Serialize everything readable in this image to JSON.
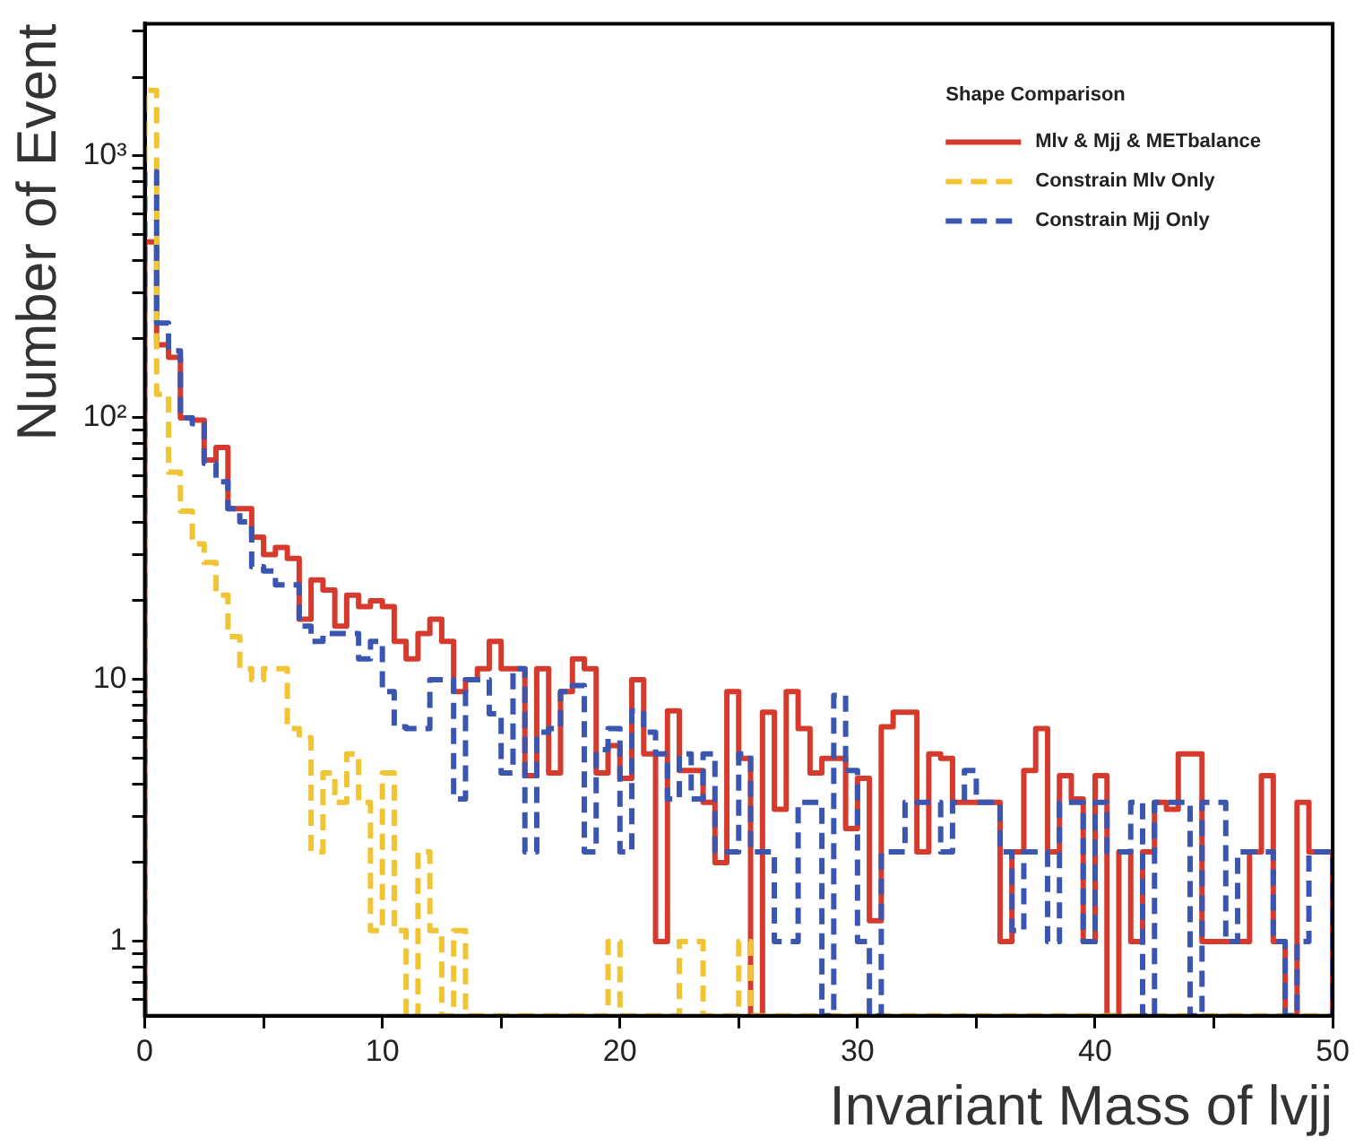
{
  "chart_data": {
    "type": "histogram",
    "xlabel": "Invariant Mass of lvjj",
    "ylabel": "Number of Event",
    "legend_title": "Shape Comparison",
    "legend": "top right",
    "log": true,
    "bins": [
      0,
      0.5,
      1,
      1.5,
      2,
      2.5,
      3,
      3.5,
      4,
      4.5,
      5,
      5.5,
      6,
      6.5,
      7,
      7.5,
      8,
      8.5,
      9,
      9.5,
      10,
      10.5,
      11,
      11.5,
      12,
      12.5,
      13,
      13.5,
      14,
      14.5,
      15,
      15.5,
      16,
      16.5,
      17,
      17.5,
      18,
      18.5,
      19,
      19.5,
      20,
      20.5,
      21,
      21.5,
      22,
      22.5,
      23,
      23.5,
      24,
      24.5,
      25,
      25.5,
      26,
      26.5,
      27,
      27.5,
      28,
      28.5,
      29,
      29.5,
      30,
      30.5,
      31,
      31.5,
      32,
      32.5,
      33,
      33.5,
      34,
      34.5,
      35,
      35.5,
      36,
      36.5,
      37,
      37.5,
      38,
      38.5,
      39,
      39.5,
      40,
      40.5,
      41,
      41.5,
      42,
      42.5,
      43,
      43.5,
      44,
      44.5,
      45,
      45.5,
      46,
      46.5,
      47,
      47.5,
      48,
      48.5,
      49,
      49.5,
      50
    ],
    "xlim": [
      0,
      50
    ],
    "xticks": [
      0,
      {
        "value": 5,
        "label": null
      },
      10,
      {
        "value": 15,
        "label": null
      },
      20,
      {
        "value": 25,
        "label": null
      },
      30,
      {
        "value": 35,
        "label": null
      },
      40,
      {
        "value": 45,
        "label": null
      },
      50
    ],
    "ylim": [
      0.52,
      3200
    ],
    "yticks": [
      {
        "value": 0.6,
        "label": null
      },
      {
        "value": 0.7,
        "label": null
      },
      {
        "value": 0.8,
        "label": null
      },
      {
        "value": 0.9,
        "label": null
      },
      1,
      {
        "value": 2,
        "label": null
      },
      {
        "value": 3,
        "label": null
      },
      {
        "value": 4,
        "label": null
      },
      {
        "value": 5,
        "label": null
      },
      {
        "value": 6,
        "label": null
      },
      {
        "value": 7,
        "label": null
      },
      {
        "value": 8,
        "label": null
      },
      {
        "value": 9,
        "label": null
      },
      10,
      {
        "value": 20,
        "label": null
      },
      {
        "value": 30,
        "label": null
      },
      {
        "value": 40,
        "label": null
      },
      {
        "value": 50,
        "label": null
      },
      {
        "value": 60,
        "label": null
      },
      {
        "value": 70,
        "label": null
      },
      {
        "value": 80,
        "label": null
      },
      {
        "value": 90,
        "label": null
      },
      {
        "value": 100,
        "label": "10²"
      },
      {
        "value": 200,
        "label": null
      },
      {
        "value": 300,
        "label": null
      },
      {
        "value": 400,
        "label": null
      },
      {
        "value": 500,
        "label": null
      },
      {
        "value": 600,
        "label": null
      },
      {
        "value": 700,
        "label": null
      },
      {
        "value": 800,
        "label": null
      },
      {
        "value": 900,
        "label": null
      },
      {
        "value": 1000,
        "label": "10³"
      },
      {
        "value": 2000,
        "label": null
      },
      {
        "value": 3000,
        "label": null
      }
    ],
    "series": [
      {
        "name": "Mlv & Mjj & METbalance",
        "color": "#d63a2c",
        "line_style": "solid",
        "values": [
          470,
          190,
          170,
          100,
          98,
          69,
          77,
          45,
          45,
          35,
          30,
          32,
          29,
          17,
          24,
          22,
          16,
          21,
          19,
          20,
          19,
          14,
          12,
          15,
          17,
          14,
          9,
          10,
          11,
          14,
          11,
          11,
          4.3,
          11,
          4.4,
          9,
          12,
          11,
          4.4,
          5.6,
          4.2,
          10,
          5.2,
          1,
          7.6,
          4.5,
          4.5,
          3.4,
          2,
          9,
          5,
          null,
          7.5,
          3.2,
          9,
          6.5,
          4.4,
          5,
          5,
          2.7,
          4.2,
          1.2,
          6.6,
          7.5,
          7.5,
          2.2,
          5.2,
          5,
          3.4,
          3.4,
          3.4,
          3.4,
          1,
          2.2,
          4.5,
          6.5,
          2.2,
          4.3,
          3.5,
          1,
          4.3,
          null,
          2.2,
          1,
          2.2,
          3.4,
          3.2,
          5.2,
          5.2,
          1,
          1,
          1,
          1,
          2.2,
          4.3,
          1,
          null,
          3.4,
          2.2,
          2.2
        ]
      },
      {
        "name": "Constrain Mlv Only",
        "color": "#f0c432",
        "line_style": "dashed",
        "values": [
          1780,
          123,
          62,
          44,
          33,
          28,
          21,
          14.6,
          11,
          10,
          11,
          11,
          6.5,
          6,
          2.2,
          4.4,
          3.4,
          5.2,
          3.4,
          1.1,
          4.4,
          1.1,
          null,
          2.2,
          1.1,
          null,
          1.1,
          null,
          null,
          null,
          null,
          null,
          null,
          null,
          null,
          null,
          null,
          null,
          null,
          1,
          null,
          null,
          null,
          null,
          null,
          1,
          1,
          null,
          null,
          null,
          1,
          null,
          null,
          null,
          null,
          null,
          null,
          null,
          null,
          null,
          null,
          null,
          null,
          null,
          null,
          null,
          null,
          null,
          null,
          null,
          null,
          null,
          null,
          null,
          null,
          null,
          null,
          null,
          null,
          null,
          null,
          null,
          null,
          null,
          null,
          null,
          null,
          null,
          null,
          null,
          null,
          null,
          null,
          null,
          null,
          null,
          null,
          null,
          null,
          null
        ]
      },
      {
        "name": "Constrain Mjj Only",
        "color": "#3a56b0",
        "line_style": "dashed",
        "values": [
          870,
          230,
          180,
          100,
          95,
          67,
          57,
          45,
          40,
          27,
          26,
          23,
          23,
          16,
          14,
          15,
          15,
          15,
          12,
          14,
          9,
          6.6,
          6.5,
          6.5,
          10,
          10,
          3.5,
          10,
          10,
          7.4,
          4.4,
          11,
          2.2,
          6.3,
          6.5,
          9,
          9.5,
          2.2,
          5.4,
          6.5,
          2.2,
          7.6,
          6.3,
          5.2,
          3.5,
          5.2,
          3.5,
          5.2,
          2.2,
          2.2,
          5.2,
          2.2,
          2.2,
          1,
          1,
          3.4,
          3.4,
          null,
          8.7,
          4.5,
          1,
          null,
          2.2,
          2.2,
          3.4,
          3.4,
          3.4,
          2.2,
          3.4,
          4.5,
          3.4,
          3.4,
          2.2,
          1.1,
          2.2,
          2.2,
          1,
          3.4,
          3.4,
          1,
          3.4,
          2.2,
          2.2,
          3.4,
          null,
          3.4,
          3.4,
          3.4,
          null,
          3.4,
          3.4,
          1,
          2.2,
          2.2,
          2.2,
          1,
          null,
          1,
          2.2,
          2.2
        ]
      }
    ]
  }
}
